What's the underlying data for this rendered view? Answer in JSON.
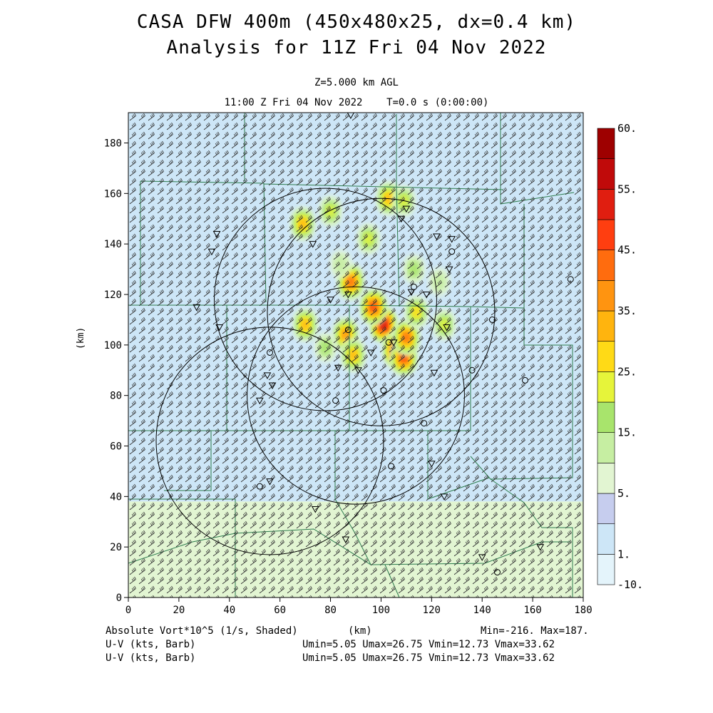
{
  "header": {
    "title_line1": "CASA DFW 400m (450x480x25, dx=0.4 km)",
    "title_line2": "Analysis for 11Z Fri 04 Nov 2022",
    "level": "Z=5.000 km AGL",
    "valid_time": "11:00 Z Fri 04 Nov 2022    T=0.0 s (0:00:00)"
  },
  "footer": {
    "field1": "Absolute Vort*10^5 (1/s, Shaded)",
    "field2": "U-V (kts, Barb)",
    "field3": "U-V (kts, Barb)",
    "xunit": "(km)",
    "minmax": "Min=-216. Max=187.",
    "range2": "Umin=5.05 Umax=26.75 Vmin=12.73 Vmax=33.62",
    "range3": "Umin=5.05 Umax=26.75 Vmin=12.73 Vmax=33.62"
  },
  "chart_data": {
    "type": "heatmap",
    "ylabel": "(km)",
    "xlabel": "(km)",
    "xlim": [
      0,
      180
    ],
    "ylim": [
      0,
      192
    ],
    "x_ticks": [
      "0",
      "20",
      "40",
      "60",
      "80",
      "100",
      "120",
      "140",
      "160",
      "180"
    ],
    "y_ticks": [
      "0",
      "20",
      "40",
      "60",
      "80",
      "100",
      "120",
      "140",
      "160",
      "180"
    ],
    "colorbar": {
      "levels": [
        -10,
        1,
        3,
        5,
        10,
        15,
        20,
        25,
        30,
        35,
        40,
        45,
        50,
        55,
        60
      ],
      "labels": [
        "60.",
        "55.",
        "45.",
        "35.",
        "25.",
        "15.",
        "5.",
        "1.",
        "-10."
      ],
      "label_values": [
        60,
        55,
        45,
        35,
        25,
        15,
        5,
        1,
        -10
      ],
      "colors": [
        "#e4f4fb",
        "#cde6f7",
        "#c6cdee",
        "#e2f5d2",
        "#c6eea2",
        "#a8e46c",
        "#e6f43a",
        "#ffda16",
        "#ffb40e",
        "#ff9410",
        "#ff6c0e",
        "#ff3e10",
        "#e01e10",
        "#c00a0a",
        "#9e0000"
      ]
    },
    "radars": [
      {
        "x": 78,
        "y": 118,
        "r": 44
      },
      {
        "x": 100,
        "y": 113,
        "r": 45
      },
      {
        "x": 90,
        "y": 80,
        "r": 43
      },
      {
        "x": 56,
        "y": 62,
        "r": 45
      }
    ],
    "background_regions": [
      {
        "name": "upper",
        "y": [
          38,
          192
        ],
        "level": 1
      },
      {
        "name": "lower",
        "y": [
          0,
          38
        ],
        "level": 5
      }
    ],
    "vorticity_cores": [
      {
        "x": 101,
        "y": 108,
        "value": 55
      },
      {
        "x": 106,
        "y": 98,
        "value": 50
      },
      {
        "x": 109,
        "y": 95,
        "value": 45
      },
      {
        "x": 97,
        "y": 115,
        "value": 45
      },
      {
        "x": 110,
        "y": 103,
        "value": 40
      },
      {
        "x": 88,
        "y": 125,
        "value": 40
      },
      {
        "x": 86,
        "y": 104,
        "value": 35
      },
      {
        "x": 70,
        "y": 108,
        "value": 30
      },
      {
        "x": 69,
        "y": 148,
        "value": 30
      },
      {
        "x": 103,
        "y": 158,
        "value": 30
      },
      {
        "x": 89,
        "y": 96,
        "value": 30
      },
      {
        "x": 114,
        "y": 113,
        "value": 25
      },
      {
        "x": 125,
        "y": 108,
        "value": 20
      },
      {
        "x": 80,
        "y": 153,
        "value": 20
      },
      {
        "x": 95,
        "y": 142,
        "value": 20
      },
      {
        "x": 109,
        "y": 157,
        "value": 20
      },
      {
        "x": 78,
        "y": 99,
        "value": 15
      },
      {
        "x": 113,
        "y": 130,
        "value": 15
      },
      {
        "x": 123,
        "y": 125,
        "value": 10
      },
      {
        "x": 84,
        "y": 132,
        "value": 10
      }
    ],
    "site_markers": [
      {
        "x": 35,
        "y": 144,
        "shape": "triangle"
      },
      {
        "x": 33,
        "y": 137,
        "shape": "triangle"
      },
      {
        "x": 27,
        "y": 115,
        "shape": "triangle"
      },
      {
        "x": 36,
        "y": 107,
        "shape": "triangle"
      },
      {
        "x": 55,
        "y": 88,
        "shape": "triangle"
      },
      {
        "x": 57,
        "y": 84,
        "shape": "triangle"
      },
      {
        "x": 52,
        "y": 78,
        "shape": "triangle"
      },
      {
        "x": 56,
        "y": 46,
        "shape": "triangle"
      },
      {
        "x": 74,
        "y": 35,
        "shape": "triangle"
      },
      {
        "x": 86,
        "y": 23,
        "shape": "triangle"
      },
      {
        "x": 88,
        "y": 191,
        "shape": "triangle"
      },
      {
        "x": 73,
        "y": 140,
        "shape": "triangle"
      },
      {
        "x": 80,
        "y": 118,
        "shape": "triangle"
      },
      {
        "x": 87,
        "y": 120,
        "shape": "triangle"
      },
      {
        "x": 96,
        "y": 97,
        "shape": "triangle"
      },
      {
        "x": 83,
        "y": 91,
        "shape": "triangle"
      },
      {
        "x": 91,
        "y": 90,
        "shape": "triangle"
      },
      {
        "x": 105,
        "y": 101,
        "shape": "triangle"
      },
      {
        "x": 108,
        "y": 150,
        "shape": "triangle"
      },
      {
        "x": 110,
        "y": 154,
        "shape": "triangle"
      },
      {
        "x": 122,
        "y": 143,
        "shape": "triangle"
      },
      {
        "x": 128,
        "y": 142,
        "shape": "triangle"
      },
      {
        "x": 127,
        "y": 130,
        "shape": "triangle"
      },
      {
        "x": 118,
        "y": 120,
        "shape": "triangle"
      },
      {
        "x": 112,
        "y": 121,
        "shape": "triangle"
      },
      {
        "x": 126,
        "y": 107,
        "shape": "triangle"
      },
      {
        "x": 121,
        "y": 89,
        "shape": "triangle"
      },
      {
        "x": 120,
        "y": 53,
        "shape": "triangle"
      },
      {
        "x": 125,
        "y": 40,
        "shape": "triangle"
      },
      {
        "x": 140,
        "y": 16,
        "shape": "triangle"
      },
      {
        "x": 163,
        "y": 20,
        "shape": "triangle"
      },
      {
        "x": 144,
        "y": 110,
        "shape": "circle"
      },
      {
        "x": 175,
        "y": 126,
        "shape": "circle"
      },
      {
        "x": 128,
        "y": 137,
        "shape": "circle"
      },
      {
        "x": 113,
        "y": 123,
        "shape": "circle"
      },
      {
        "x": 136,
        "y": 90,
        "shape": "circle"
      },
      {
        "x": 157,
        "y": 86,
        "shape": "circle"
      },
      {
        "x": 117,
        "y": 69,
        "shape": "circle"
      },
      {
        "x": 104,
        "y": 52,
        "shape": "circle"
      },
      {
        "x": 101,
        "y": 82,
        "shape": "circle"
      },
      {
        "x": 82,
        "y": 78,
        "shape": "circle"
      },
      {
        "x": 56,
        "y": 97,
        "shape": "circle"
      },
      {
        "x": 52,
        "y": 44,
        "shape": "circle"
      },
      {
        "x": 146,
        "y": 10,
        "shape": "circle"
      },
      {
        "x": 87,
        "y": 106,
        "shape": "circle"
      },
      {
        "x": 103,
        "y": 101,
        "shape": "circle"
      }
    ],
    "wind_barb_grid": {
      "dx_km": 3.6,
      "dy_km": 3.6,
      "direction": "SW"
    }
  }
}
